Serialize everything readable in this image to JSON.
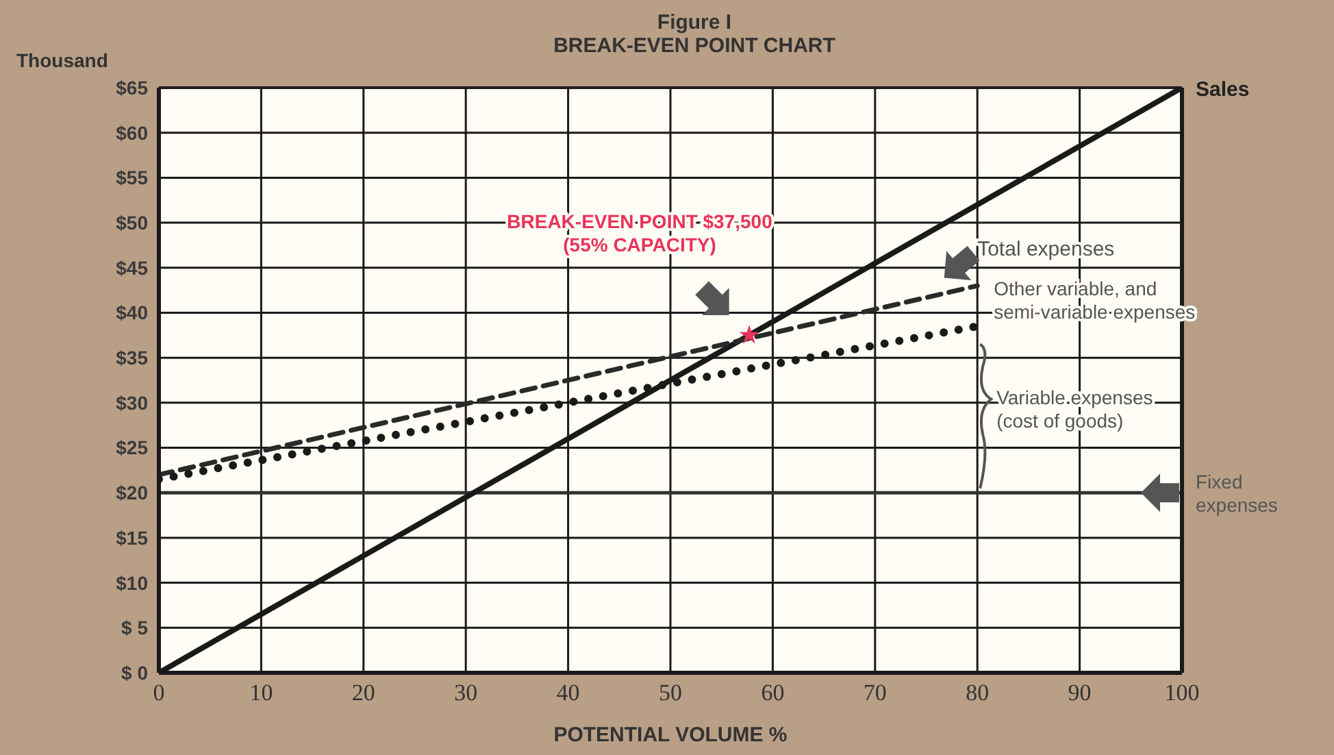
{
  "chart_data": {
    "type": "line",
    "title": "Figure I",
    "subtitle": "BREAK-EVEN POINT CHART",
    "xlabel": "POTENTIAL VOLUME %",
    "ylabel": "Thousand",
    "xlim": [
      0,
      100
    ],
    "xticks": [
      0,
      10,
      20,
      30,
      40,
      50,
      60,
      70,
      80,
      90,
      100
    ],
    "ylim": [
      0,
      65
    ],
    "yticks": [
      {
        "value": 0,
        "label": "$ 0"
      },
      {
        "value": 5,
        "label": "$ 5"
      },
      {
        "value": 10,
        "label": "$10"
      },
      {
        "value": 15,
        "label": "$15"
      },
      {
        "value": 20,
        "label": "$20"
      },
      {
        "value": 25,
        "label": "$25"
      },
      {
        "value": 30,
        "label": "$30"
      },
      {
        "value": 35,
        "label": "$35"
      },
      {
        "value": 40,
        "label": "$40"
      },
      {
        "value": 45,
        "label": "$45"
      },
      {
        "value": 50,
        "label": "$50"
      },
      {
        "value": 55,
        "label": "$55"
      },
      {
        "value": 60,
        "label": "$60"
      },
      {
        "value": 65,
        "label": "$65"
      }
    ],
    "grid": true,
    "marker": "none",
    "series": [
      {
        "name": "Sales",
        "color": "#1a1a1a",
        "x": [
          0,
          100
        ],
        "values": [
          0,
          65
        ],
        "line_style": "solid"
      },
      {
        "name": "Total expenses",
        "color": "#2a2a2a",
        "x": [
          0,
          80
        ],
        "values": [
          22,
          43
        ],
        "line_style": "dashed"
      },
      {
        "color": "#1a1a1a",
        "x": [
          0,
          80
        ],
        "values": [
          21.5,
          38.5
        ],
        "line_style": "dotted"
      },
      {
        "type": "scatter",
        "color": "#e8335a",
        "x": [
          57.7
        ],
        "values": [
          37.5
        ],
        "marker": "star"
      }
    ],
    "ref_lines": [
      {
        "axis": "y",
        "value": 20,
        "label": "Fixed expenses",
        "color": "#333333"
      }
    ],
    "annotations": [
      "BREAK-EVEN POINT $37,500\n(55% CAPACITY)",
      "Other variable, and\nsemi-variable expenses",
      "Variable expenses\n(cost of goods)"
    ]
  }
}
